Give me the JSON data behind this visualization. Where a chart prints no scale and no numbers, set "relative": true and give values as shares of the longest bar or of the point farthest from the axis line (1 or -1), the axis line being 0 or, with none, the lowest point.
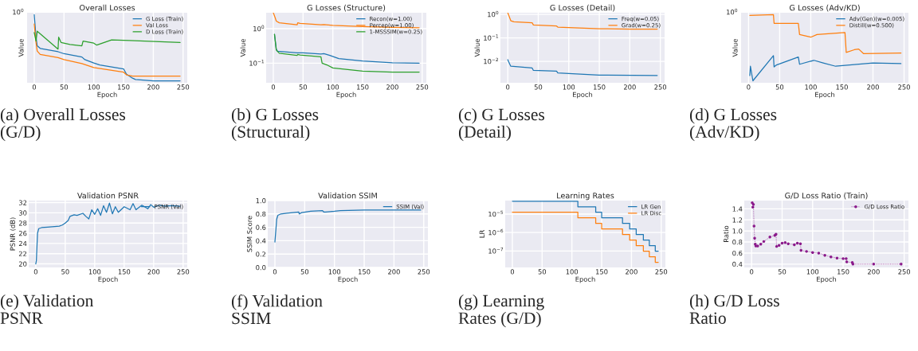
{
  "chart_data": [
    {
      "type": "line",
      "title": "Overall Losses",
      "xlabel": "Epoch",
      "ylabel": "Value",
      "relative": true,
      "grid": true,
      "legend": "top right",
      "xlim": [
        -12,
        257
      ],
      "xticks": [
        0,
        50,
        100,
        150,
        200,
        250
      ],
      "annotations": [
        "(a) Overall Losses\n(G/D)",
        "10$^{0}$"
      ],
      "series": [
        {
          "name": "G Loss (Train)",
          "color": "#1f77b4",
          "x": [
            0,
            3,
            5,
            10,
            40,
            50,
            80,
            85,
            100,
            110,
            150,
            155,
            165,
            170,
            200,
            245
          ],
          "values": [
            1.0,
            0.66,
            0.53,
            0.49,
            0.44,
            0.41,
            0.36,
            0.32,
            0.27,
            0.24,
            0.18,
            0.1,
            0.04,
            0.02,
            0.0,
            0.0
          ]
        },
        {
          "name": "Val Loss",
          "color": "#ff7f0e",
          "x": [
            0,
            3,
            5,
            10,
            40,
            50,
            80,
            100,
            150,
            155,
            165,
            200,
            245
          ],
          "values": [
            0.86,
            0.58,
            0.45,
            0.4,
            0.35,
            0.32,
            0.26,
            0.2,
            0.13,
            0.09,
            0.07,
            0.07,
            0.07
          ]
        },
        {
          "name": "D Loss (Train)",
          "color": "#2ca02c",
          "x": [
            0,
            3,
            5,
            40,
            41,
            45,
            60,
            80,
            82,
            100,
            105,
            130,
            160,
            245
          ],
          "values": [
            0.73,
            0.6,
            0.75,
            0.48,
            0.66,
            0.58,
            0.55,
            0.53,
            0.6,
            0.57,
            0.54,
            0.62,
            0.61,
            0.58
          ]
        }
      ]
    },
    {
      "type": "line",
      "title": "G Losses (Structure)",
      "xlabel": "Epoch",
      "ylabel": "Value",
      "log": true,
      "grid": true,
      "legend": "top right",
      "xlim": [
        -12,
        257
      ],
      "xticks": [
        0,
        50,
        100,
        150,
        200,
        250
      ],
      "ylim": [
        0.027,
        2.9
      ],
      "yticks": [
        {
          "value": 0.1,
          "label": "10$^{−1}$"
        },
        {
          "value": 1,
          "label": "10$^{0}$"
        }
      ],
      "annotations": [
        "(b) G Losses\n(Structural)"
      ],
      "series": [
        {
          "name": "Recon(w=1.00)",
          "color": "#1f77b4",
          "x": [
            2,
            5,
            7,
            40,
            50,
            80,
            85,
            95,
            110,
            150,
            200,
            245
          ],
          "values": [
            0.685,
            0.256,
            0.222,
            0.2,
            0.2,
            0.185,
            0.19,
            0.168,
            0.136,
            0.116,
            0.103,
            0.1
          ]
        },
        {
          "name": "Percep(w=1.00)",
          "color": "#ff7f0e",
          "x": [
            0,
            3,
            5,
            10,
            40,
            41,
            45,
            80,
            85,
            100,
            150,
            200,
            245
          ],
          "values": [
            2.9,
            2.1,
            1.66,
            1.48,
            1.29,
            1.48,
            1.42,
            1.29,
            1.32,
            1.25,
            1.15,
            1.09,
            1.07
          ]
        },
        {
          "name": "1-MSSSIM(w=0.25)",
          "color": "#2ca02c",
          "x": [
            2,
            5,
            10,
            40,
            41,
            45,
            80,
            82,
            90,
            100,
            150,
            200,
            245
          ],
          "values": [
            0.685,
            0.24,
            0.194,
            0.168,
            0.18,
            0.172,
            0.152,
            0.1,
            0.089,
            0.0726,
            0.059,
            0.055,
            0.055
          ]
        }
      ]
    },
    {
      "type": "line",
      "title": "G Losses (Detail)",
      "xlabel": "Epoch",
      "ylabel": "Value",
      "log": true,
      "grid": true,
      "legend": "top right",
      "xlim": [
        -12,
        257
      ],
      "xticks": [
        0,
        50,
        100,
        150,
        200,
        250
      ],
      "ylim": [
        0.00122,
        1.18
      ],
      "yticks": [
        {
          "value": 0.01,
          "label": "10$^{−2}$"
        },
        {
          "value": 0.1,
          "label": "10$^{−1}$"
        },
        {
          "value": 1,
          "label": "10$^{0}$"
        }
      ],
      "annotations": [
        "(c) G Losses\n(Detail)"
      ],
      "series": [
        {
          "name": "Freq(w=0.05)",
          "color": "#1f77b4",
          "x": [
            0,
            3,
            5,
            40,
            42,
            80,
            82,
            100,
            150,
            245
          ],
          "values": [
            0.0118,
            0.0078,
            0.0062,
            0.0052,
            0.0041,
            0.0038,
            0.0032,
            0.003,
            0.0026,
            0.0025
          ]
        },
        {
          "name": "Grad(w=0.25)",
          "color": "#ff7f0e",
          "x": [
            0,
            3,
            5,
            10,
            40,
            42,
            80,
            82,
            100,
            150,
            200,
            245
          ],
          "values": [
            1.18,
            0.733,
            0.538,
            0.486,
            0.438,
            0.356,
            0.321,
            0.289,
            0.278,
            0.246,
            0.236,
            0.236
          ]
        }
      ]
    },
    {
      "type": "line",
      "title": "G Losses (Adv/KD)",
      "xlabel": "Epoch",
      "ylabel": "Value",
      "relative": true,
      "grid": true,
      "legend": "top right",
      "xlim": [
        -12,
        257
      ],
      "xticks": [
        0,
        50,
        100,
        150,
        200,
        250
      ],
      "annotations": [
        "(d) G Losses\n(Adv/KD)",
        "10$^{0}$"
      ],
      "series": [
        {
          "name": "Adv(Gen)(w=0.005)",
          "color": "#1f77b4",
          "x": [
            2,
            3,
            7,
            40,
            41,
            45,
            80,
            82,
            105,
            120,
            140,
            200,
            245
          ],
          "values": [
            0.08,
            0.22,
            0.0,
            0.38,
            0.21,
            0.24,
            0.36,
            0.25,
            0.31,
            0.27,
            0.22,
            0.27,
            0.26
          ]
        },
        {
          "name": "Distill(w=0.500)",
          "color": "#ff7f0e",
          "x": [
            2,
            40,
            41,
            80,
            82,
            100,
            110,
            155,
            157,
            170,
            177,
            185,
            245
          ],
          "values": [
            0.99,
            1.0,
            0.87,
            0.87,
            0.7,
            0.66,
            0.7,
            0.73,
            0.43,
            0.47,
            0.48,
            0.41,
            0.42
          ]
        }
      ]
    },
    {
      "type": "line",
      "title": "Validation PSNR",
      "xlabel": "Epoch",
      "ylabel": "PSNR (dB)",
      "grid": true,
      "legend": "top right",
      "xlim": [
        -12,
        257
      ],
      "xticks": [
        0,
        50,
        100,
        150,
        200,
        250
      ],
      "ylim": [
        19.3,
        32.4
      ],
      "yticks": [
        20,
        22,
        24,
        26,
        28,
        30,
        32
      ],
      "annotations": [
        "(e) Validation\nPSNR"
      ],
      "series": [
        {
          "name": "PSNR (Val)",
          "color": "#1f77b4",
          "x": [
            0,
            1,
            3,
            5,
            10,
            20,
            40,
            45,
            50,
            55,
            58,
            65,
            70,
            80,
            85,
            90,
            95,
            100,
            105,
            110,
            115,
            120,
            125,
            130,
            135,
            140,
            150,
            160,
            165,
            170,
            180,
            190,
            195,
            200,
            210,
            220,
            230,
            245
          ],
          "values": [
            20.0,
            20.6,
            26.0,
            26.9,
            27.1,
            27.2,
            27.4,
            27.6,
            28.0,
            28.5,
            29.3,
            29.6,
            29.5,
            29.9,
            29.3,
            28.8,
            30.6,
            29.7,
            30.8,
            29.5,
            31.4,
            30.1,
            31.9,
            29.8,
            31.2,
            30.1,
            31.2,
            30.6,
            31.8,
            30.6,
            31.5,
            30.8,
            31.6,
            31.1,
            31.5,
            31.3,
            31.4,
            31.3
          ]
        }
      ]
    },
    {
      "type": "line",
      "title": "Validation SSIM",
      "xlabel": "Epoch",
      "ylabel": "SSIM Score",
      "grid": true,
      "legend": "top right",
      "xlim": [
        -12,
        257
      ],
      "xticks": [
        0,
        50,
        100,
        150,
        200,
        250
      ],
      "ylim": [
        0,
        1
      ],
      "yticks": [
        {
          "value": 0,
          "label": "0.0"
        },
        0.2,
        0.4,
        0.6,
        0.8,
        {
          "value": 1,
          "label": "1.0"
        }
      ],
      "annotations": [
        "(f) Validation\nSSIM"
      ],
      "series": [
        {
          "name": "SSIM (Val)",
          "color": "#1f77b4",
          "x": [
            0,
            2,
            3,
            5,
            10,
            20,
            40,
            41,
            45,
            60,
            80,
            82,
            85,
            100,
            110,
            150,
            200,
            245
          ],
          "values": [
            0.38,
            0.6,
            0.72,
            0.78,
            0.8,
            0.81,
            0.83,
            0.8,
            0.82,
            0.84,
            0.85,
            0.83,
            0.83,
            0.84,
            0.85,
            0.86,
            0.86,
            0.86
          ]
        }
      ]
    },
    {
      "type": "step",
      "title": "Learning Rates",
      "xlabel": "Epoch",
      "ylabel": "LR",
      "log": true,
      "grid": true,
      "legend": "top right",
      "xlim": [
        -12,
        257
      ],
      "xticks": [
        0,
        50,
        100,
        150,
        200,
        250
      ],
      "ylim": [
        1.29e-08,
        5.4e-05
      ],
      "yticks": [
        {
          "value": 1e-07,
          "label": "10$^{−7}$"
        },
        {
          "value": 1e-06,
          "label": "10$^{−6}$"
        },
        {
          "value": 1e-05,
          "label": "10$^{−5}$"
        }
      ],
      "annotations": [
        "(g) Learning\nRates (G/D)"
      ],
      "series": [
        {
          "name": "LR Gen",
          "color": "#1f77b4",
          "x": [
            0,
            110,
            140,
            150,
            185,
            197,
            208,
            220,
            230,
            240,
            245
          ],
          "values": [
            5e-05,
            2.5e-05,
            1.25e-05,
            6.25e-06,
            3.13e-06,
            1.56e-06,
            7.81e-07,
            3.91e-07,
            1.95e-07,
            9.77e-08,
            9.77e-08
          ]
        },
        {
          "name": "LR Disc",
          "color": "#ff7f0e",
          "x": [
            0,
            110,
            140,
            150,
            185,
            197,
            208,
            220,
            230,
            240,
            245
          ],
          "values": [
            1.25e-05,
            6.25e-06,
            3.13e-06,
            1.56e-06,
            7.81e-07,
            3.91e-07,
            1.95e-07,
            9.77e-08,
            4.88e-08,
            2.44e-08,
            2.44e-08
          ]
        }
      ]
    },
    {
      "type": "line",
      "title": "G/D Loss Ratio (Train)",
      "xlabel": "Epoch",
      "ylabel": "Ratio",
      "grid": true,
      "legend": "top right",
      "marker": "circle",
      "line_style": "dotted",
      "xlim": [
        -12,
        257
      ],
      "xticks": [
        0,
        50,
        100,
        150,
        200,
        250
      ],
      "ylim": [
        0.34,
        1.55
      ],
      "yticks": [
        0.4,
        0.6,
        0.8,
        {
          "value": 1,
          "label": "1.0"
        },
        1.2,
        1.4
      ],
      "annotations": [
        "(h) G/D Loss\nRatio"
      ],
      "series": [
        {
          "name": "G/D Loss Ratio",
          "color": "#8b1a8b",
          "x": [
            1,
            2,
            3,
            4,
            5,
            6,
            7,
            10,
            15,
            20,
            30,
            38,
            40,
            41,
            45,
            50,
            55,
            60,
            70,
            75,
            80,
            81,
            90,
            100,
            110,
            120,
            130,
            140,
            150,
            155,
            156,
            165,
            166,
            200,
            245
          ],
          "values": [
            1.51,
            1.43,
            1.48,
            1.09,
            0.87,
            0.76,
            0.73,
            0.73,
            0.76,
            0.81,
            0.89,
            0.92,
            0.94,
            0.72,
            0.74,
            0.78,
            0.79,
            0.77,
            0.75,
            0.78,
            0.77,
            0.65,
            0.63,
            0.61,
            0.6,
            0.56,
            0.53,
            0.51,
            0.5,
            0.5,
            0.44,
            0.43,
            0.4,
            0.4,
            0.4
          ]
        }
      ]
    }
  ]
}
